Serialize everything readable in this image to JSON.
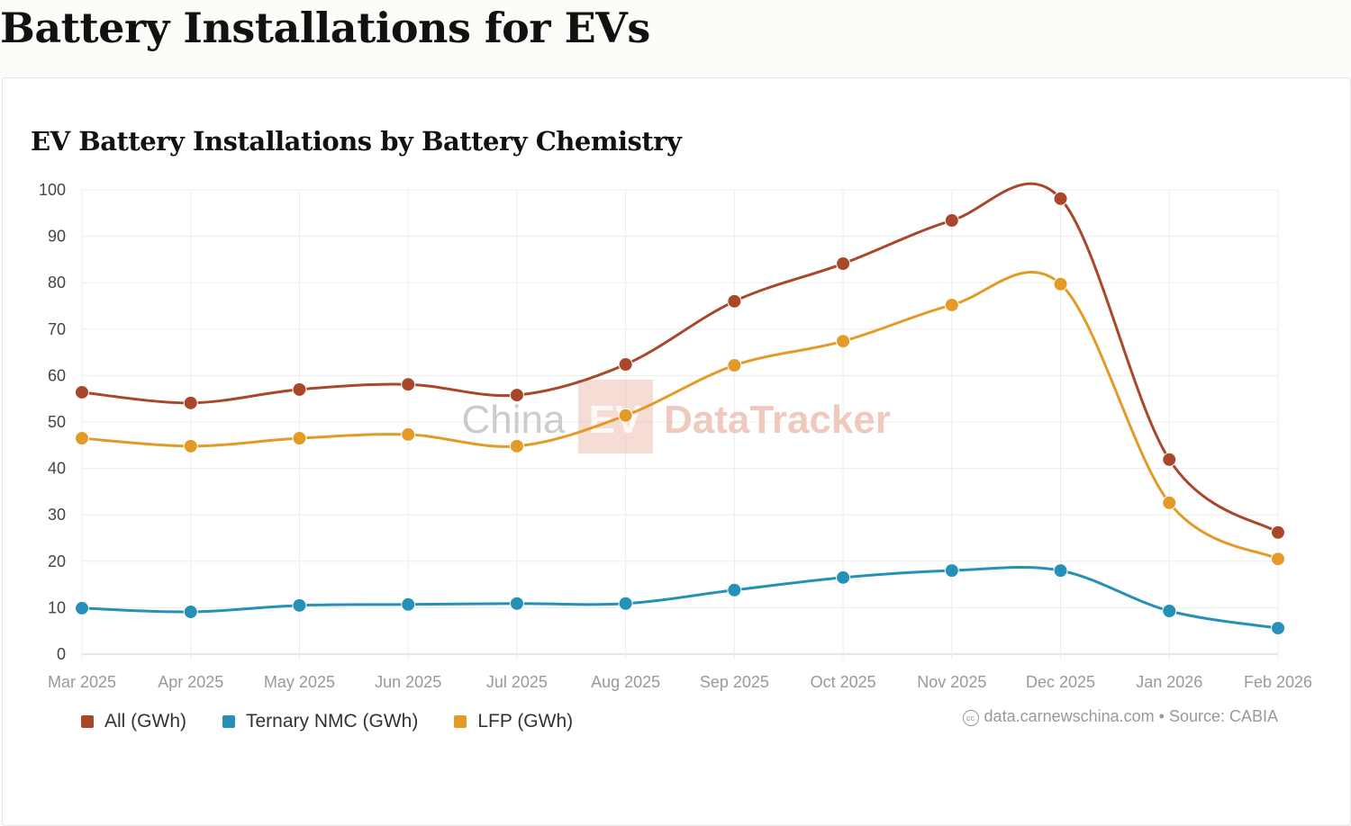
{
  "page_title": "Battery Installations for EVs",
  "chart_data": {
    "type": "line",
    "title": "EV Battery Installations by Battery Chemistry",
    "categories": [
      "Mar 2025",
      "Apr 2025",
      "May 2025",
      "Jun 2025",
      "Jul 2025",
      "Aug 2025",
      "Sep 2025",
      "Oct 2025",
      "Nov 2025",
      "Dec 2025",
      "Jan 2026",
      "Feb 2026"
    ],
    "ylim": [
      0,
      100
    ],
    "yticks": [
      0,
      10,
      20,
      30,
      40,
      50,
      60,
      70,
      80,
      90,
      100
    ],
    "grid": true,
    "legend_position": "bottom-left",
    "series": [
      {
        "name": "All (GWh)",
        "color": "#a8472a",
        "values": [
          56.4,
          54.1,
          57.0,
          58.1,
          55.8,
          62.4,
          76.0,
          84.1,
          93.4,
          98.1,
          41.9,
          26.2
        ]
      },
      {
        "name": "Ternary NMC (GWh)",
        "color": "#2590b8",
        "values": [
          9.9,
          9.1,
          10.5,
          10.7,
          10.9,
          10.9,
          13.8,
          16.5,
          18.0,
          18.0,
          9.3,
          5.6
        ]
      },
      {
        "name": "LFP (GWh)",
        "color": "#e39a26",
        "values": [
          46.5,
          44.8,
          46.5,
          47.3,
          44.8,
          51.4,
          62.2,
          67.4,
          75.2,
          79.7,
          32.6,
          20.5
        ]
      }
    ]
  },
  "watermark": "China EV DataTracker",
  "credit": "data.carnewschina.com • Source: CABIA"
}
